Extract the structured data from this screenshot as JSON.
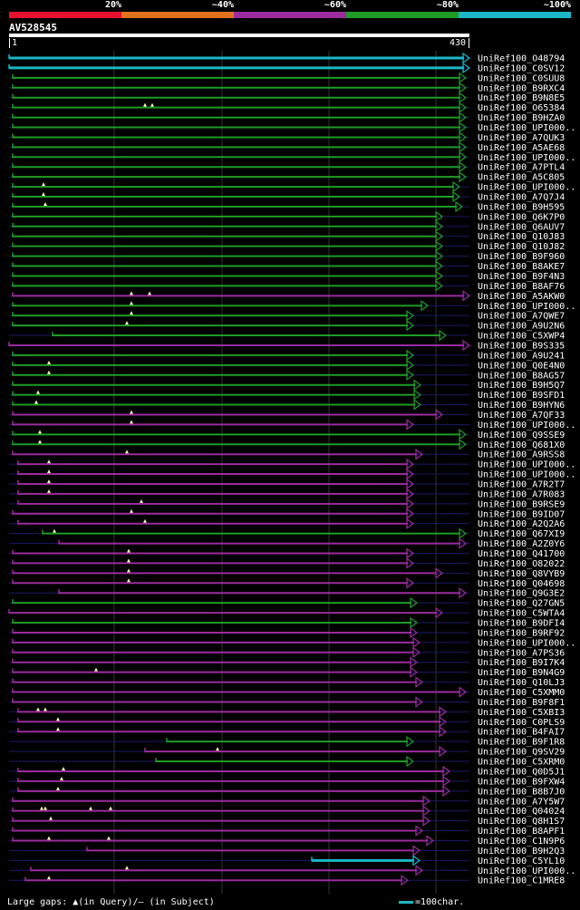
{
  "legend": [
    {
      "label": "20%",
      "color": "#e8112d"
    },
    {
      "label": "~40%",
      "color": "#e2711d"
    },
    {
      "label": "~60%",
      "color": "#9b2b9e"
    },
    {
      "label": "~80%",
      "color": "#1e9c26"
    },
    {
      "label": "~100%",
      "color": "#1bb7c7"
    }
  ],
  "query": {
    "name": "AV528545",
    "start": "1",
    "end": "430",
    "length": 430
  },
  "footer": {
    "gaps_text": "Large gaps: ▲(in Query)/— (in Subject)",
    "scale_text": "=100char."
  },
  "hits": [
    {
      "label": "UniRef100_O48794",
      "color": "cyan",
      "end": 518,
      "start": 10,
      "marks": []
    },
    {
      "label": "UniRef100_C0SV12",
      "color": "cyan",
      "end": 518,
      "start": 10,
      "marks": []
    },
    {
      "label": "UniRef100_C0SUU8",
      "color": "green",
      "end": 514,
      "start": 14,
      "marks": []
    },
    {
      "label": "UniRef100_B9RXC4",
      "color": "green",
      "end": 514,
      "start": 14,
      "marks": []
    },
    {
      "label": "UniRef100_B9N8E5",
      "color": "green",
      "end": 514,
      "start": 14,
      "marks": []
    },
    {
      "label": "UniRef100_O65384",
      "color": "green",
      "end": 514,
      "start": 14,
      "marks": [
        160,
        168
      ]
    },
    {
      "label": "UniRef100_B9HZA0",
      "color": "green",
      "end": 514,
      "start": 14,
      "marks": []
    },
    {
      "label": "UniRef100_UPI000..",
      "color": "green",
      "end": 514,
      "start": 14,
      "marks": []
    },
    {
      "label": "UniRef100_A7QUK3",
      "color": "green",
      "end": 514,
      "start": 14,
      "marks": []
    },
    {
      "label": "UniRef100_A5AE68",
      "color": "green",
      "end": 514,
      "start": 14,
      "marks": []
    },
    {
      "label": "UniRef100_UPI000..",
      "color": "green",
      "end": 514,
      "start": 14,
      "marks": []
    },
    {
      "label": "UniRef100_A7PTL4",
      "color": "green",
      "end": 514,
      "start": 14,
      "marks": []
    },
    {
      "label": "UniRef100_A5C805",
      "color": "green",
      "end": 514,
      "start": 14,
      "marks": []
    },
    {
      "label": "UniRef100_UPI000..",
      "color": "green",
      "end": 507,
      "start": 14,
      "marks": [
        48
      ]
    },
    {
      "label": "UniRef100_A7Q7J4",
      "color": "green",
      "end": 507,
      "start": 14,
      "marks": [
        48
      ]
    },
    {
      "label": "UniRef100_B9H595",
      "color": "green",
      "end": 510,
      "start": 14,
      "marks": [
        50
      ]
    },
    {
      "label": "UniRef100_Q6K7P0",
      "color": "green",
      "end": 488,
      "start": 14,
      "marks": []
    },
    {
      "label": "UniRef100_Q6AUV7",
      "color": "green",
      "end": 488,
      "start": 14,
      "marks": []
    },
    {
      "label": "UniRef100_Q10J83",
      "color": "green",
      "end": 488,
      "start": 14,
      "marks": []
    },
    {
      "label": "UniRef100_Q10J82",
      "color": "green",
      "end": 488,
      "start": 14,
      "marks": []
    },
    {
      "label": "UniRef100_B9F960",
      "color": "green",
      "end": 488,
      "start": 14,
      "marks": []
    },
    {
      "label": "UniRef100_B8AKE7",
      "color": "green",
      "end": 488,
      "start": 14,
      "marks": []
    },
    {
      "label": "UniRef100_B9F4N3",
      "color": "green",
      "end": 488,
      "start": 14,
      "marks": []
    },
    {
      "label": "UniRef100_B8AF76",
      "color": "green",
      "end": 488,
      "start": 14,
      "marks": []
    },
    {
      "label": "UniRef100_A5AKW0",
      "color": "purple",
      "end": 518,
      "start": 14,
      "marks": [
        145,
        165
      ]
    },
    {
      "label": "UniRef100_UPI000..",
      "color": "green",
      "end": 472,
      "start": 14,
      "marks": [
        145
      ]
    },
    {
      "label": "UniRef100_A7QWE7",
      "color": "green",
      "end": 456,
      "start": 14,
      "marks": [
        145
      ]
    },
    {
      "label": "UniRef100_A9U2N6",
      "color": "green",
      "end": 456,
      "start": 14,
      "marks": [
        140
      ]
    },
    {
      "label": "UniRef100_C5XWP4",
      "color": "green",
      "end": 492,
      "start": 58,
      "marks": []
    },
    {
      "label": "UniRef100_B9S335",
      "color": "purple",
      "end": 518,
      "start": 10,
      "marks": []
    },
    {
      "label": "UniRef100_A9U241",
      "color": "green",
      "end": 456,
      "start": 14,
      "marks": []
    },
    {
      "label": "UniRef100_Q0E4N0",
      "color": "green",
      "end": 456,
      "start": 14,
      "marks": [
        54
      ]
    },
    {
      "label": "UniRef100_B8AG57",
      "color": "green",
      "end": 456,
      "start": 14,
      "marks": [
        54
      ]
    },
    {
      "label": "UniRef100_B9H5Q7",
      "color": "green",
      "end": 464,
      "start": 14,
      "marks": []
    },
    {
      "label": "UniRef100_B9SFD1",
      "color": "green",
      "end": 464,
      "start": 14,
      "marks": [
        42
      ]
    },
    {
      "label": "UniRef100_B9HYN6",
      "color": "green",
      "end": 464,
      "start": 14,
      "marks": [
        40
      ]
    },
    {
      "label": "UniRef100_A7QF33",
      "color": "purple",
      "end": 488,
      "start": 14,
      "marks": [
        145
      ]
    },
    {
      "label": "UniRef100_UPI000..",
      "color": "purple",
      "end": 456,
      "start": 14,
      "marks": [
        145
      ]
    },
    {
      "label": "UniRef100_Q9SSE9",
      "color": "green",
      "end": 514,
      "start": 14,
      "marks": [
        44
      ]
    },
    {
      "label": "UniRef100_Q681X0",
      "color": "green",
      "end": 514,
      "start": 14,
      "marks": [
        44
      ]
    },
    {
      "label": "UniRef100_A9RSS8",
      "color": "purple",
      "end": 466,
      "start": 14,
      "marks": [
        140
      ]
    },
    {
      "label": "UniRef100_UPI000..",
      "color": "purple",
      "end": 456,
      "start": 20,
      "marks": [
        54
      ]
    },
    {
      "label": "UniRef100_UPI000..",
      "color": "purple",
      "end": 456,
      "start": 20,
      "marks": [
        54
      ]
    },
    {
      "label": "UniRef100_A7R2T7",
      "color": "purple",
      "end": 456,
      "start": 20,
      "marks": [
        54
      ]
    },
    {
      "label": "UniRef100_A7R083",
      "color": "purple",
      "end": 456,
      "start": 20,
      "marks": [
        54
      ]
    },
    {
      "label": "UniRef100_B9RSE9",
      "color": "purple",
      "end": 456,
      "start": 20,
      "marks": [
        156
      ]
    },
    {
      "label": "UniRef100_B9ID07",
      "color": "purple",
      "end": 456,
      "start": 14,
      "marks": [
        145
      ]
    },
    {
      "label": "UniRef100_A2Q2A6",
      "color": "purple",
      "end": 456,
      "start": 20,
      "marks": [
        160
      ]
    },
    {
      "label": "UniRef100_Q67XI9",
      "color": "green",
      "end": 514,
      "start": 47,
      "marks": [
        60
      ]
    },
    {
      "label": "UniRef100_A2Z0Y6",
      "color": "purple",
      "end": 514,
      "start": 65,
      "marks": []
    },
    {
      "label": "UniRef100_Q41700",
      "color": "purple",
      "end": 456,
      "start": 14,
      "marks": [
        142
      ]
    },
    {
      "label": "UniRef100_O82022",
      "color": "purple",
      "end": 456,
      "start": 14,
      "marks": [
        142
      ]
    },
    {
      "label": "UniRef100_Q8VYB9",
      "color": "purple",
      "end": 488,
      "start": 14,
      "marks": [
        142
      ]
    },
    {
      "label": "UniRef100_Q04698",
      "color": "purple",
      "end": 456,
      "start": 14,
      "marks": [
        142
      ]
    },
    {
      "label": "UniRef100_Q9G3E2",
      "color": "purple",
      "end": 514,
      "start": 65,
      "marks": []
    },
    {
      "label": "UniRef100_Q27GN5",
      "color": "green",
      "end": 460,
      "start": 14,
      "marks": []
    },
    {
      "label": "UniRef100_C5WTA4",
      "color": "purple",
      "end": 488,
      "start": 10,
      "marks": []
    },
    {
      "label": "UniRef100_B9DFI4",
      "color": "green",
      "end": 460,
      "start": 14,
      "marks": []
    },
    {
      "label": "UniRef100_B9RF92",
      "color": "purple",
      "end": 460,
      "start": 14,
      "marks": []
    },
    {
      "label": "UniRef100_UPI000..",
      "color": "purple",
      "end": 463,
      "start": 14,
      "marks": []
    },
    {
      "label": "UniRef100_A7PS36",
      "color": "purple",
      "end": 463,
      "start": 14,
      "marks": []
    },
    {
      "label": "UniRef100_B9I7K4",
      "color": "purple",
      "end": 460,
      "start": 14,
      "marks": []
    },
    {
      "label": "UniRef100_B9N4G9",
      "color": "purple",
      "end": 460,
      "start": 14,
      "marks": [
        106
      ]
    },
    {
      "label": "UniRef100_Q10LJ3",
      "color": "purple",
      "end": 466,
      "start": 14,
      "marks": []
    },
    {
      "label": "UniRef100_C5XMM0",
      "color": "purple",
      "end": 514,
      "start": 14,
      "marks": []
    },
    {
      "label": "UniRef100_B9F8F1",
      "color": "purple",
      "end": 466,
      "start": 14,
      "marks": []
    },
    {
      "label": "UniRef100_C5XBI3",
      "color": "purple",
      "end": 492,
      "start": 20,
      "marks": [
        42,
        50
      ]
    },
    {
      "label": "UniRef100_C0PLS9",
      "color": "purple",
      "end": 492,
      "start": 20,
      "marks": [
        64
      ]
    },
    {
      "label": "UniRef100_B4FAI7",
      "color": "purple",
      "end": 492,
      "start": 20,
      "marks": [
        64
      ]
    },
    {
      "label": "UniRef100_B9F1R8",
      "color": "green",
      "end": 456,
      "start": 184,
      "marks": []
    },
    {
      "label": "UniRef100_Q9SV29",
      "color": "purple",
      "end": 492,
      "start": 160,
      "marks": [
        240
      ]
    },
    {
      "label": "UniRef100_C5XRM0",
      "color": "green",
      "end": 456,
      "start": 172,
      "marks": []
    },
    {
      "label": "UniRef100_Q0D5J1",
      "color": "purple",
      "end": 496,
      "start": 20,
      "marks": [
        70
      ]
    },
    {
      "label": "UniRef100_B9FXW4",
      "color": "purple",
      "end": 496,
      "start": 20,
      "marks": [
        68
      ]
    },
    {
      "label": "UniRef100_B8B7J0",
      "color": "purple",
      "end": 496,
      "start": 20,
      "marks": [
        64
      ]
    },
    {
      "label": "UniRef100_A7Y5W7",
      "color": "purple",
      "end": 474,
      "start": 14,
      "marks": []
    },
    {
      "label": "UniRef100_Q04024",
      "color": "purple",
      "end": 474,
      "start": 14,
      "marks": [
        46,
        50,
        100,
        122
      ]
    },
    {
      "label": "UniRef100_Q8H1S7",
      "color": "purple",
      "end": 474,
      "start": 14,
      "marks": [
        56
      ]
    },
    {
      "label": "UniRef100_B8APF1",
      "color": "purple",
      "end": 466,
      "start": 14,
      "marks": []
    },
    {
      "label": "UniRef100_C1N9P6",
      "color": "purple",
      "end": 478,
      "start": 14,
      "marks": [
        54,
        120
      ]
    },
    {
      "label": "UniRef100_B9H2Q3",
      "color": "purple",
      "end": 463,
      "start": 96,
      "marks": []
    },
    {
      "label": "UniRef100_C5YL10",
      "color": "cyan",
      "end": 463,
      "start": 344,
      "marks": []
    },
    {
      "label": "UniRef100_UPI000..",
      "color": "purple",
      "end": 466,
      "start": 34,
      "marks": [
        140
      ]
    },
    {
      "label": "UniRef100_C1MRE8",
      "color": "purple",
      "end": 450,
      "start": 28,
      "marks": [
        54
      ]
    }
  ]
}
